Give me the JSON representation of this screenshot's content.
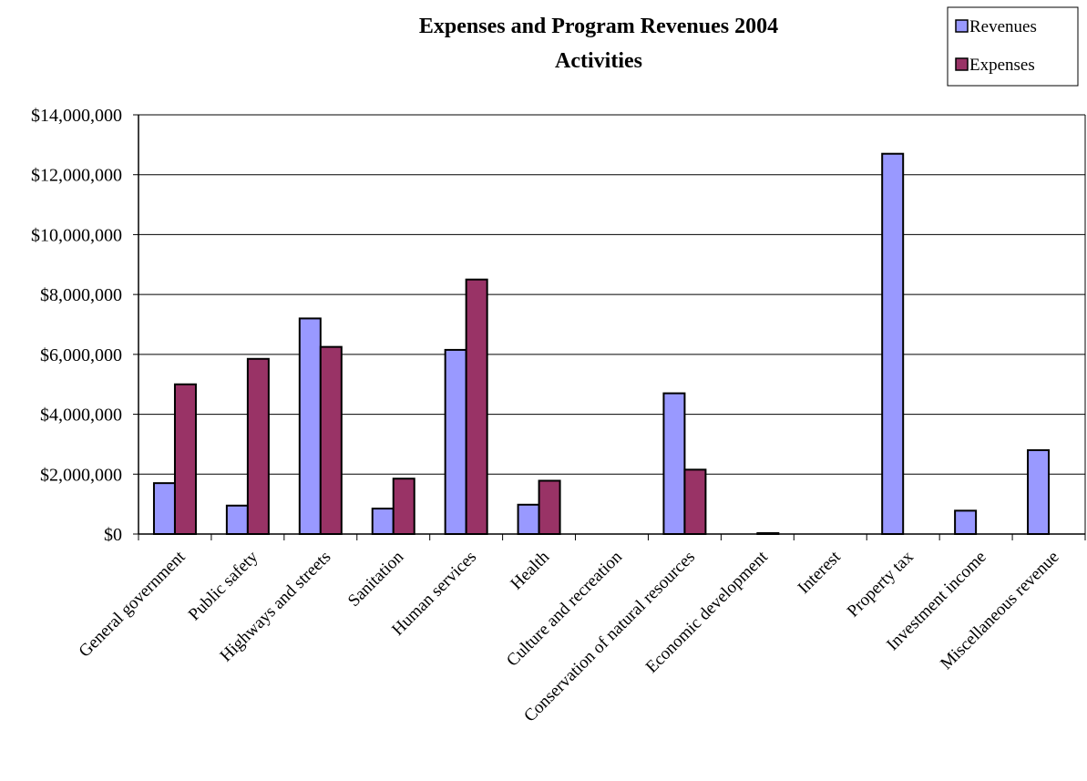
{
  "chart_data": {
    "type": "bar",
    "title": "Expenses and Program Revenues 2004",
    "subtitle": "Activities",
    "xlabel": "",
    "ylabel": "",
    "ylim": [
      0,
      14000000
    ],
    "yticks": [
      0,
      2000000,
      4000000,
      6000000,
      8000000,
      10000000,
      12000000,
      14000000
    ],
    "ytick_labels": [
      "$0",
      "$2,000,000",
      "$4,000,000",
      "$6,000,000",
      "$8,000,000",
      "$10,000,000",
      "$12,000,000",
      "$14,000,000"
    ],
    "grid": true,
    "legend_position": "top-right",
    "categories": [
      "General government",
      "Public safety",
      "Highways and streets",
      "Sanitation",
      "Human services",
      "Health",
      "Culture and recreation",
      "Conservation of natural resources",
      "Economic development",
      "Interest",
      "Property tax",
      "Investment income",
      "Miscellaneous revenue"
    ],
    "series": [
      {
        "name": "Revenues",
        "color": "#9999ff",
        "values": [
          1700000,
          950000,
          7200000,
          850000,
          6150000,
          980000,
          0,
          4700000,
          0,
          0,
          12700000,
          780000,
          2800000
        ]
      },
      {
        "name": "Expenses",
        "color": "#993366",
        "values": [
          5000000,
          5850000,
          6250000,
          1850000,
          8500000,
          1780000,
          0,
          2150000,
          30000,
          0,
          0,
          0,
          0
        ]
      }
    ]
  }
}
